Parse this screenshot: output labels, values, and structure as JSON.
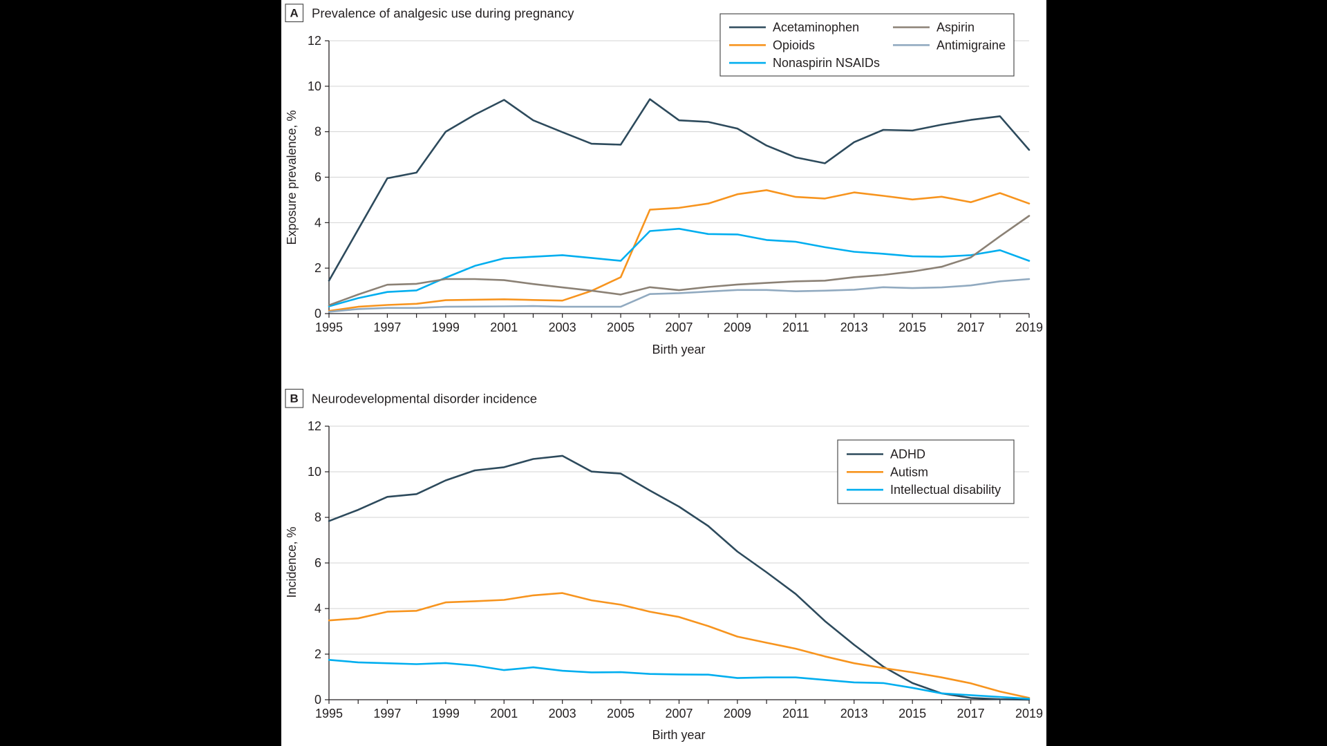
{
  "chart_data": [
    {
      "panel": "A",
      "type": "line",
      "title": "Prevalence of analgesic use during pregnancy",
      "xlabel": "Birth year",
      "ylabel": "Exposure prevalence, %",
      "xlim": [
        1995,
        2019
      ],
      "ylim": [
        0,
        12
      ],
      "xticks": [
        1995,
        1997,
        1999,
        2001,
        2003,
        2005,
        2007,
        2009,
        2011,
        2013,
        2015,
        2017,
        2019
      ],
      "yticks": [
        0,
        2,
        4,
        6,
        8,
        10,
        12
      ],
      "grid": "horizontal",
      "legend": "top-right",
      "x": [
        1995,
        1996,
        1997,
        1998,
        1999,
        2000,
        2001,
        2002,
        2003,
        2004,
        2005,
        2006,
        2007,
        2008,
        2009,
        2010,
        2011,
        2012,
        2013,
        2014,
        2015,
        2016,
        2017,
        2018,
        2019
      ],
      "series": [
        {
          "name": "Acetaminophen",
          "color": "#2d4a5c",
          "values": [
            1.45,
            3.7,
            5.95,
            6.2,
            8.0,
            8.75,
            9.4,
            8.5,
            7.98,
            7.47,
            7.43,
            9.43,
            8.5,
            8.43,
            8.14,
            7.39,
            6.87,
            6.61,
            7.54,
            8.08,
            8.05,
            8.31,
            8.52,
            8.68,
            7.2
          ]
        },
        {
          "name": "Opioids",
          "color": "#f7941e",
          "values": [
            0.12,
            0.3,
            0.38,
            0.43,
            0.59,
            0.61,
            0.63,
            0.6,
            0.57,
            1.0,
            1.6,
            4.57,
            4.65,
            4.84,
            5.25,
            5.43,
            5.13,
            5.06,
            5.33,
            5.18,
            5.02,
            5.14,
            4.9,
            5.3,
            4.84
          ]
        },
        {
          "name": "Nonaspirin NSAIDs",
          "color": "#00aeef",
          "values": [
            0.32,
            0.68,
            0.95,
            1.02,
            1.58,
            2.1,
            2.43,
            2.5,
            2.57,
            2.45,
            2.32,
            3.63,
            3.73,
            3.5,
            3.48,
            3.24,
            3.16,
            2.92,
            2.72,
            2.63,
            2.52,
            2.5,
            2.57,
            2.79,
            2.32
          ]
        },
        {
          "name": "Aspirin",
          "color": "#8b8175",
          "values": [
            0.37,
            0.84,
            1.27,
            1.31,
            1.52,
            1.52,
            1.47,
            1.3,
            1.15,
            1.01,
            0.84,
            1.16,
            1.03,
            1.17,
            1.28,
            1.35,
            1.42,
            1.45,
            1.6,
            1.7,
            1.85,
            2.06,
            2.47,
            3.4,
            4.3
          ]
        },
        {
          "name": "Antimigraine",
          "color": "#91aac0",
          "values": [
            0.08,
            0.2,
            0.25,
            0.25,
            0.3,
            0.31,
            0.32,
            0.33,
            0.3,
            0.3,
            0.3,
            0.86,
            0.9,
            0.97,
            1.04,
            1.04,
            0.98,
            1.01,
            1.05,
            1.16,
            1.12,
            1.15,
            1.24,
            1.42,
            1.52
          ]
        }
      ]
    },
    {
      "panel": "B",
      "type": "line",
      "title": "Neurodevelopmental disorder incidence",
      "xlabel": "Birth year",
      "ylabel": "Incidence, %",
      "xlim": [
        1995,
        2019
      ],
      "ylim": [
        0,
        12
      ],
      "xticks": [
        1995,
        1997,
        1999,
        2001,
        2003,
        2005,
        2007,
        2009,
        2011,
        2013,
        2015,
        2017,
        2019
      ],
      "yticks": [
        0,
        2,
        4,
        6,
        8,
        10,
        12
      ],
      "grid": "horizontal",
      "legend": "top-right",
      "x": [
        1995,
        1996,
        1997,
        1998,
        1999,
        2000,
        2001,
        2002,
        2003,
        2004,
        2005,
        2006,
        2007,
        2008,
        2009,
        2010,
        2011,
        2012,
        2013,
        2014,
        2015,
        2016,
        2017,
        2018,
        2019
      ],
      "series": [
        {
          "name": "ADHD",
          "color": "#2d4a5c",
          "values": [
            7.84,
            8.33,
            8.9,
            9.02,
            9.62,
            10.06,
            10.2,
            10.56,
            10.7,
            10.01,
            9.92,
            9.18,
            8.47,
            7.62,
            6.5,
            5.59,
            4.64,
            3.45,
            2.41,
            1.45,
            0.73,
            0.28,
            0.08,
            0.02,
            0.0
          ]
        },
        {
          "name": "Autism",
          "color": "#f7941e",
          "values": [
            3.48,
            3.57,
            3.86,
            3.9,
            4.27,
            4.32,
            4.38,
            4.58,
            4.68,
            4.36,
            4.17,
            3.86,
            3.63,
            3.23,
            2.77,
            2.5,
            2.24,
            1.9,
            1.6,
            1.39,
            1.2,
            0.98,
            0.72,
            0.36,
            0.08
          ]
        },
        {
          "name": "Intellectual disability",
          "color": "#00aeef",
          "values": [
            1.75,
            1.64,
            1.6,
            1.56,
            1.61,
            1.5,
            1.3,
            1.42,
            1.27,
            1.2,
            1.21,
            1.13,
            1.11,
            1.1,
            0.95,
            0.98,
            0.98,
            0.87,
            0.76,
            0.73,
            0.52,
            0.28,
            0.2,
            0.12,
            0.04
          ]
        }
      ]
    }
  ]
}
